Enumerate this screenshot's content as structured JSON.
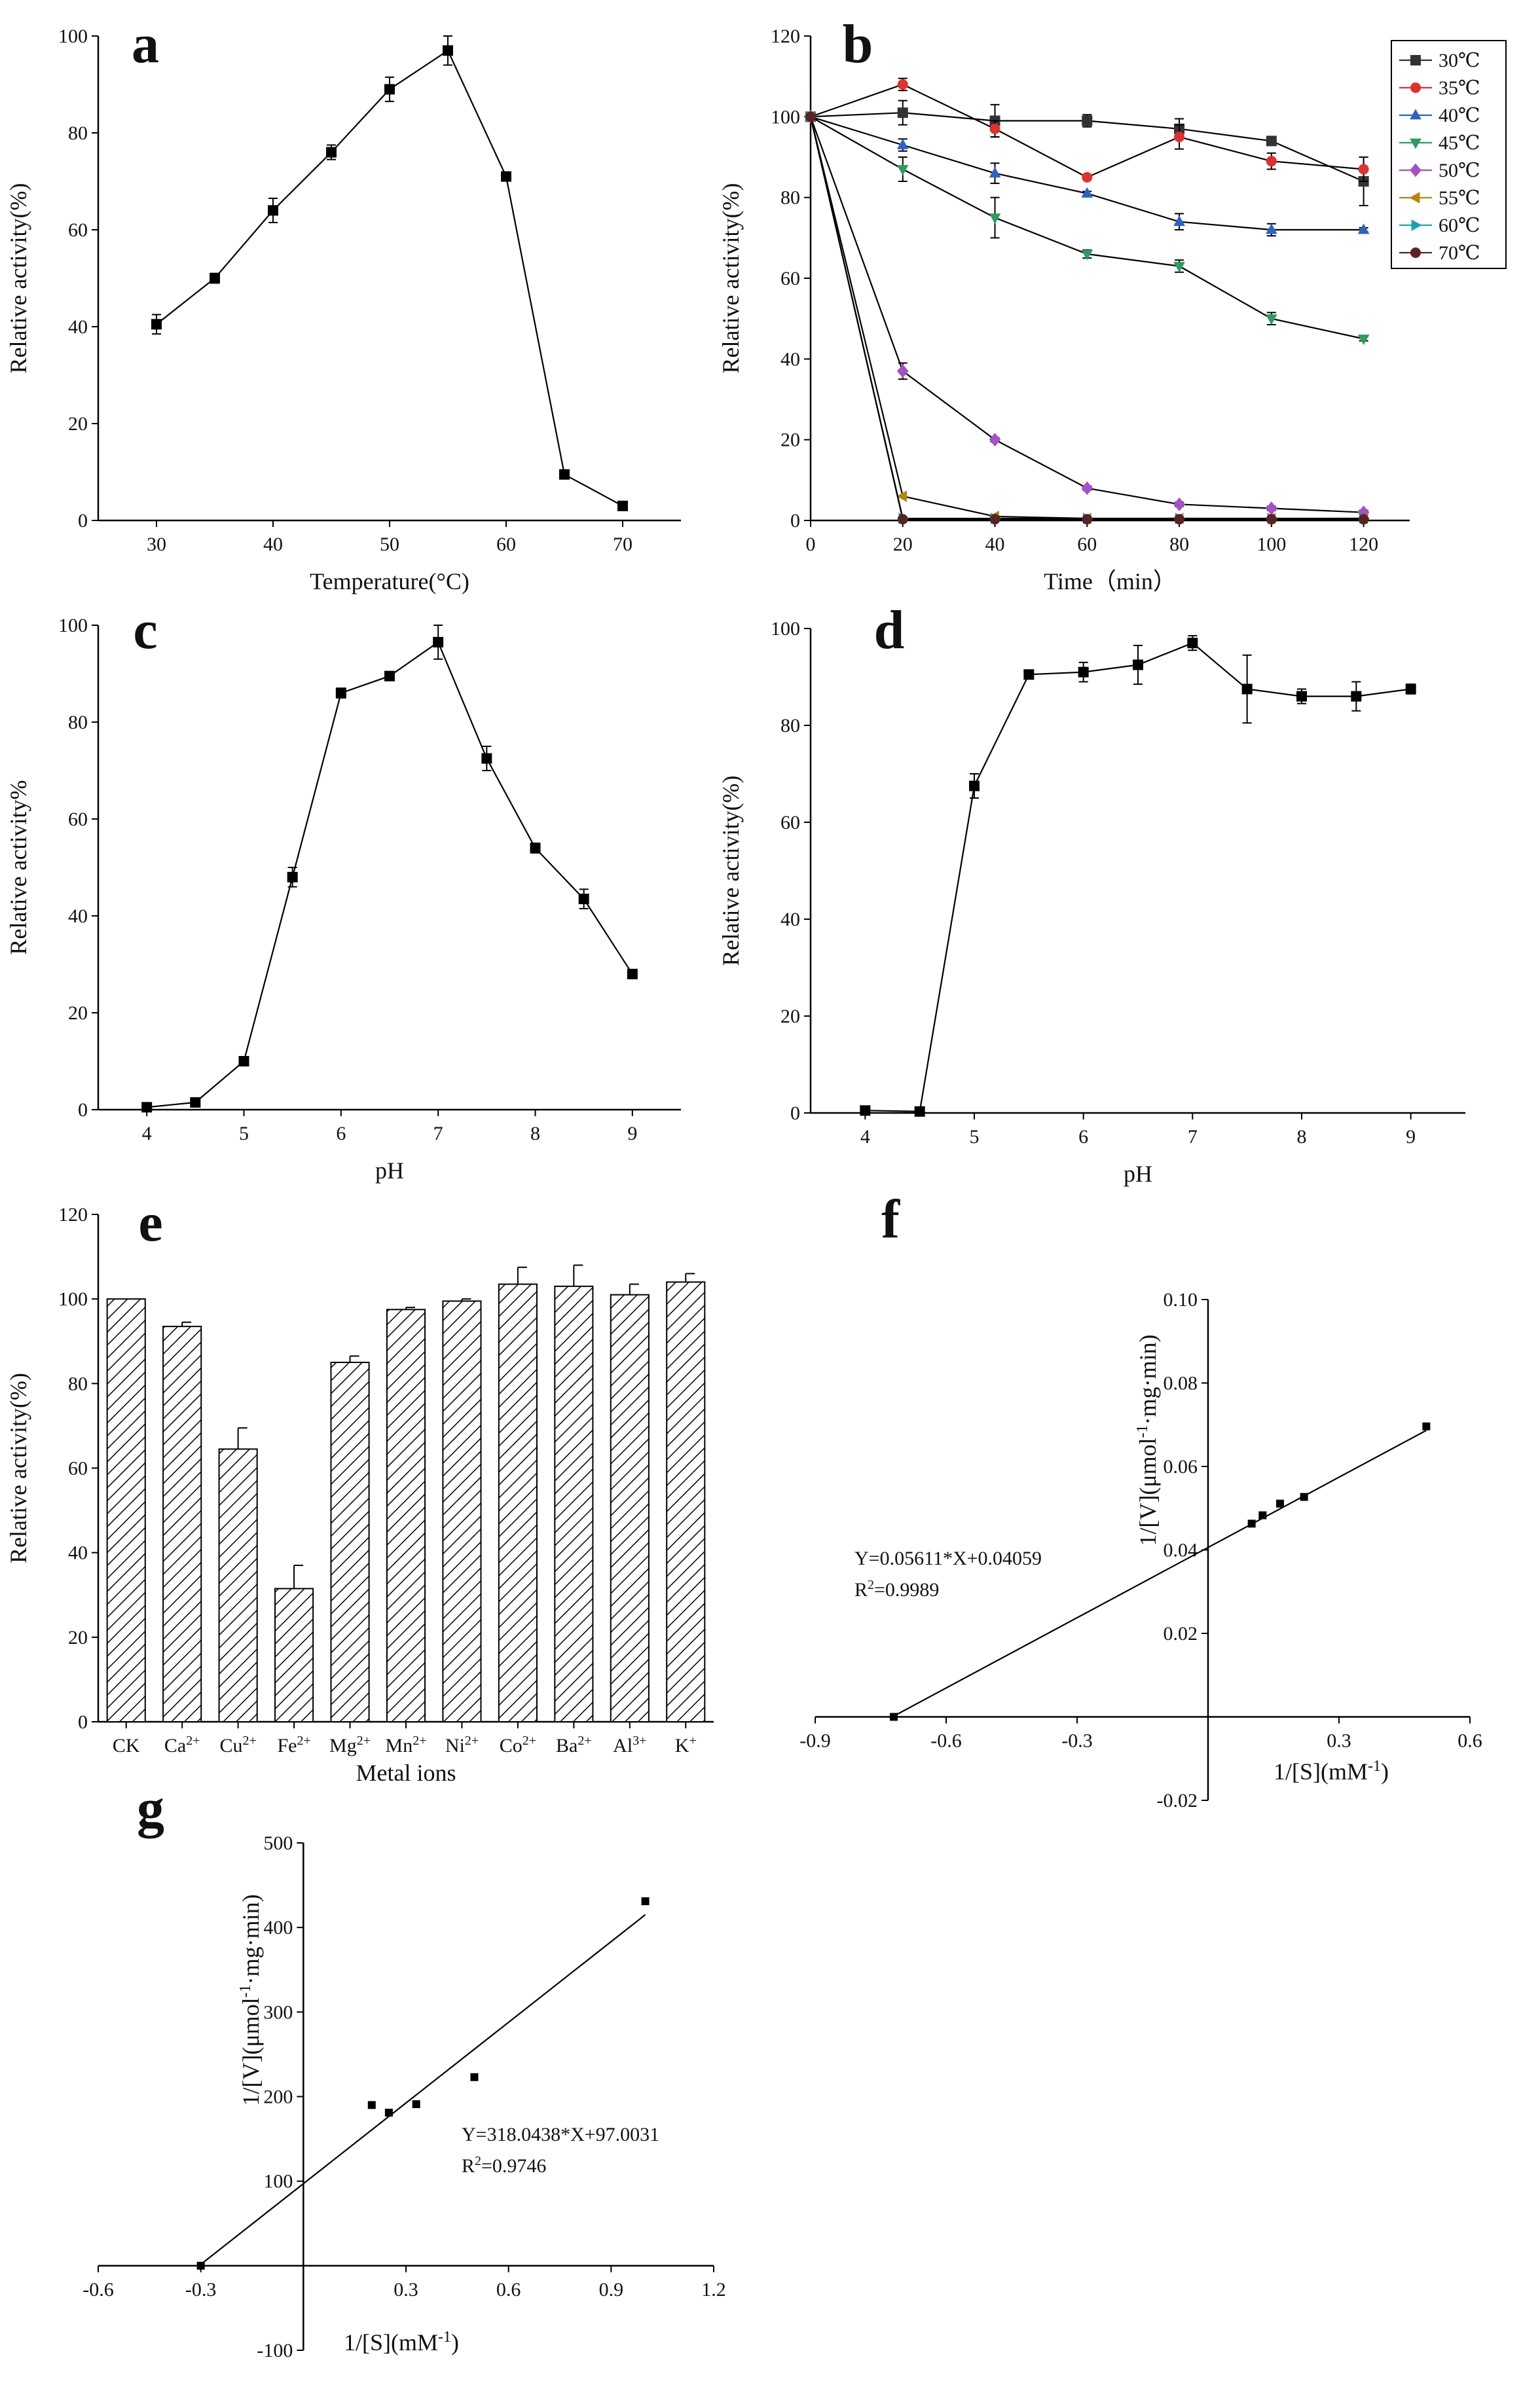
{
  "chart_data": [
    {
      "id": "a",
      "panel_label": "a",
      "type": "line",
      "xlabel": "Temperature(°C)",
      "ylabel": "Relative activity(%)",
      "xlim": [
        25,
        75
      ],
      "ylim": [
        0,
        100
      ],
      "x_ticks": [
        30,
        40,
        50,
        60,
        70
      ],
      "y_ticks": [
        0,
        20,
        40,
        60,
        80,
        100
      ],
      "x_tick_labels": [
        "30",
        "40",
        "50",
        "60",
        "70"
      ],
      "y_tick_labels": [
        "0",
        "20",
        "40",
        "60",
        "80",
        "100"
      ],
      "grid": false,
      "series": [
        {
          "color": "#000000",
          "marker": "square",
          "x": [
            30,
            35,
            40,
            45,
            50,
            55,
            60,
            65,
            70
          ],
          "y": [
            40.5,
            50,
            64,
            76,
            89,
            97,
            71,
            9.5,
            3
          ],
          "error": [
            2,
            1,
            2.5,
            1.5,
            2.5,
            3,
            0.5,
            0.5,
            0.5
          ]
        }
      ]
    },
    {
      "id": "b",
      "panel_label": "b",
      "type": "line",
      "xlabel": "Time（min）",
      "ylabel": "Relative activity(%)",
      "xlim": [
        0,
        130
      ],
      "ylim": [
        0,
        120
      ],
      "x_ticks": [
        0,
        20,
        40,
        60,
        80,
        100,
        120
      ],
      "y_ticks": [
        0,
        20,
        40,
        60,
        80,
        100,
        120
      ],
      "x_tick_labels": [
        "0",
        "20",
        "40",
        "60",
        "80",
        "100",
        "120"
      ],
      "y_tick_labels": [
        "0",
        "20",
        "40",
        "60",
        "80",
        "100",
        "120"
      ],
      "grid": false,
      "legend_position": "top-right",
      "series": [
        {
          "name": "30℃",
          "color": "#333333",
          "marker": "square",
          "x": [
            0,
            20,
            40,
            60,
            80,
            100,
            120
          ],
          "y": [
            100,
            101,
            99,
            99,
            97,
            94,
            84
          ],
          "error": [
            0,
            3,
            4,
            1.5,
            2.5,
            0.5,
            6
          ]
        },
        {
          "name": "35℃",
          "color": "#e0312b",
          "marker": "circle",
          "x": [
            0,
            20,
            40,
            60,
            80,
            100,
            120
          ],
          "y": [
            100,
            108,
            97,
            85,
            95,
            89,
            87
          ],
          "error": [
            0,
            1.5,
            2,
            0.5,
            3,
            2,
            3
          ]
        },
        {
          "name": "40℃",
          "color": "#2a62c9",
          "marker": "triangle-up",
          "x": [
            0,
            20,
            40,
            60,
            80,
            100,
            120
          ],
          "y": [
            100,
            93,
            86,
            81,
            74,
            72,
            72
          ],
          "error": [
            0,
            1.5,
            2.5,
            0.5,
            2,
            1.5,
            0.5
          ]
        },
        {
          "name": "45℃",
          "color": "#2a9d5f",
          "marker": "triangle-down",
          "x": [
            0,
            20,
            40,
            60,
            80,
            100,
            120
          ],
          "y": [
            100,
            87,
            75,
            66,
            63,
            50,
            45
          ],
          "error": [
            0,
            3,
            5,
            1,
            1.5,
            1.5,
            0.5
          ]
        },
        {
          "name": "50℃",
          "color": "#a64fc8",
          "marker": "diamond",
          "x": [
            0,
            20,
            40,
            60,
            80,
            100,
            120
          ],
          "y": [
            100,
            37,
            20,
            8,
            4,
            3,
            2
          ],
          "error": [
            0,
            2,
            0.5,
            0.5,
            0.5,
            0.5,
            0.5
          ]
        },
        {
          "name": "55℃",
          "color": "#b8860b",
          "marker": "triangle-left",
          "x": [
            0,
            20,
            40,
            60,
            80,
            100,
            120
          ],
          "y": [
            100,
            6,
            1,
            0.5,
            0.5,
            0.5,
            0.5
          ],
          "error": [
            0,
            0,
            0,
            0,
            0,
            0,
            0
          ]
        },
        {
          "name": "60℃",
          "color": "#17a2b8",
          "marker": "triangle-right",
          "x": [
            0,
            20,
            40,
            60,
            80,
            100,
            120
          ],
          "y": [
            100,
            0.5,
            0.5,
            0.5,
            0.5,
            0.5,
            0.5
          ],
          "error": [
            0,
            0,
            0,
            0,
            0,
            0,
            0
          ]
        },
        {
          "name": "70℃",
          "color": "#5a2323",
          "marker": "circle",
          "x": [
            0,
            20,
            40,
            60,
            80,
            100,
            120
          ],
          "y": [
            100,
            0.3,
            0.3,
            0.3,
            0.3,
            0.3,
            0.3
          ],
          "error": [
            0,
            0,
            0,
            0,
            0,
            0,
            0
          ]
        }
      ]
    },
    {
      "id": "c",
      "panel_label": "c",
      "type": "line",
      "xlabel": "pH",
      "ylabel": "Relative activity%",
      "xlim": [
        3.5,
        9.5
      ],
      "ylim": [
        0,
        100
      ],
      "x_ticks": [
        4,
        5,
        6,
        7,
        8,
        9
      ],
      "y_ticks": [
        0,
        20,
        40,
        60,
        80,
        100
      ],
      "x_tick_labels": [
        "4",
        "5",
        "6",
        "7",
        "8",
        "9"
      ],
      "y_tick_labels": [
        "0",
        "20",
        "40",
        "60",
        "80",
        "100"
      ],
      "grid": false,
      "series": [
        {
          "color": "#000000",
          "marker": "square",
          "x": [
            4,
            4.5,
            5,
            5.5,
            6,
            6.5,
            7,
            7.5,
            8,
            8.5,
            9
          ],
          "y": [
            0.5,
            1.5,
            10,
            48,
            86,
            89.5,
            96.5,
            72.5,
            54,
            43.5,
            28
          ],
          "error": [
            0,
            0,
            0,
            2,
            1,
            0.5,
            3.5,
            2.5,
            1,
            2,
            0.5
          ]
        }
      ]
    },
    {
      "id": "d",
      "panel_label": "d",
      "type": "line",
      "xlabel": "pH",
      "ylabel": "Relative activity(%)",
      "xlim": [
        3.5,
        9.5
      ],
      "ylim": [
        0,
        100
      ],
      "x_ticks": [
        4,
        5,
        6,
        7,
        8,
        9
      ],
      "y_ticks": [
        0,
        20,
        40,
        60,
        80,
        100
      ],
      "x_tick_labels": [
        "4",
        "5",
        "6",
        "7",
        "8",
        "9"
      ],
      "y_tick_labels": [
        "0",
        "20",
        "40",
        "60",
        "80",
        "100"
      ],
      "grid": false,
      "series": [
        {
          "color": "#000000",
          "marker": "square",
          "x": [
            4,
            4.5,
            5,
            5.5,
            6,
            6.5,
            7,
            7.5,
            8,
            8.5,
            9
          ],
          "y": [
            0.5,
            0.3,
            67.5,
            90.5,
            91,
            92.5,
            97,
            87.5,
            86,
            86,
            87.5
          ],
          "error": [
            0,
            0,
            2.5,
            0,
            2,
            4,
            1.5,
            7,
            1.5,
            3,
            1
          ]
        }
      ]
    },
    {
      "id": "e",
      "panel_label": "e",
      "type": "bar",
      "xlabel": "Metal ions",
      "ylabel": "Relative activity(%)",
      "ylim": [
        0,
        120
      ],
      "y_ticks": [
        0,
        20,
        40,
        60,
        80,
        100,
        120
      ],
      "y_tick_labels": [
        "0",
        "20",
        "40",
        "60",
        "80",
        "100",
        "120"
      ],
      "grid": false,
      "categories": [
        {
          "base": "CK",
          "sup": ""
        },
        {
          "base": "Ca",
          "sup": "2+"
        },
        {
          "base": "Cu",
          "sup": "2+"
        },
        {
          "base": "Fe",
          "sup": "2+"
        },
        {
          "base": "Mg",
          "sup": "2+"
        },
        {
          "base": "Mn",
          "sup": "2+"
        },
        {
          "base": "Ni",
          "sup": "2+"
        },
        {
          "base": "Co",
          "sup": "2+"
        },
        {
          "base": "Ba",
          "sup": "2+"
        },
        {
          "base": "Al",
          "sup": "3+"
        },
        {
          "base": "K",
          "sup": "+"
        }
      ],
      "values": [
        100,
        93.5,
        64.5,
        31.5,
        85,
        97.5,
        99.5,
        103.5,
        103,
        101,
        104
      ],
      "error": [
        0,
        1,
        5,
        5.5,
        1.5,
        0.5,
        0.5,
        4,
        5,
        2.5,
        2
      ],
      "fill": "hatched"
    },
    {
      "id": "f",
      "panel_label": "f",
      "type": "scatter",
      "xlabel_base": "1/[S](mM",
      "xlabel_sup": "-1",
      "xlabel_tail": ")",
      "ylabel_base": "1/[V](μmol",
      "ylabel_sup": "-1",
      "ylabel_tail": "·mg·min)",
      "xlim": [
        -0.9,
        0.6
      ],
      "ylim": [
        -0.02,
        0.1
      ],
      "x_ticks": [
        -0.9,
        -0.6,
        -0.3,
        0.3,
        0.6
      ],
      "y_ticks": [
        -0.02,
        0.02,
        0.04,
        0.06,
        0.08,
        0.1
      ],
      "x_tick_labels": [
        "-0.9",
        "-0.6",
        "-0.3",
        "0.3",
        "0.6"
      ],
      "y_tick_labels": [
        "-0.02",
        "0.02",
        "0.04",
        "0.06",
        "0.08",
        "0.10"
      ],
      "grid": false,
      "points": {
        "x": [
          -0.72,
          0.1,
          0.125,
          0.165,
          0.22,
          0.5
        ],
        "y": [
          0,
          0.0463,
          0.0483,
          0.0511,
          0.0527,
          0.0696
        ]
      },
      "fit": {
        "slope": 0.05611,
        "intercept": 0.04059,
        "x_range": [
          -0.723,
          0.5
        ]
      },
      "equation": "Y=0.05611*X+0.04059",
      "r2_label": "R",
      "r2_sup": "2",
      "r2_value": "=0.9989"
    },
    {
      "id": "g",
      "panel_label": "g",
      "type": "scatter",
      "xlabel_base": "1/[S](mM",
      "xlabel_sup": "-1",
      "xlabel_tail": ")",
      "ylabel_base": "1/[V](μmol",
      "ylabel_sup": "-1",
      "ylabel_tail": "·mg·min)",
      "xlim": [
        -0.6,
        1.2
      ],
      "ylim": [
        -100,
        500
      ],
      "x_ticks": [
        -0.6,
        -0.3,
        0.3,
        0.6,
        0.9,
        1.2
      ],
      "y_ticks": [
        -100,
        100,
        200,
        300,
        400,
        500
      ],
      "x_tick_labels": [
        "-0.6",
        "-0.3",
        "0.3",
        "0.6",
        "0.9",
        "1.2"
      ],
      "y_tick_labels": [
        "-100",
        "100",
        "200",
        "300",
        "400",
        "500"
      ],
      "grid": false,
      "points": {
        "x": [
          -0.3,
          0.2,
          0.25,
          0.33,
          0.5,
          1.0
        ],
        "y": [
          0,
          190,
          181,
          191,
          223,
          431
        ]
      },
      "fit": {
        "slope": 318.0438,
        "intercept": 97.0031,
        "x_range": [
          -0.305,
          1.0
        ]
      },
      "equation": "Y=318.0438*X+97.0031",
      "r2_label": "R",
      "r2_sup": "2",
      "r2_value": "=0.9746"
    }
  ]
}
